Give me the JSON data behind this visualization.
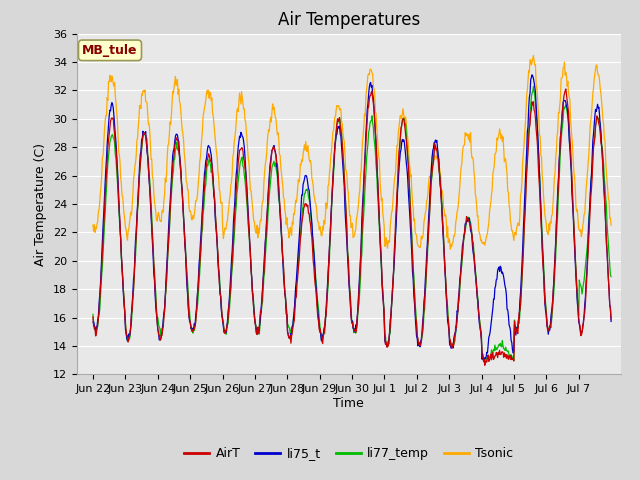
{
  "title": "Air Temperatures",
  "ylabel": "Air Temperature (C)",
  "xlabel": "Time",
  "ylim": [
    12,
    36
  ],
  "yticks": [
    12,
    14,
    16,
    18,
    20,
    22,
    24,
    26,
    28,
    30,
    32,
    34,
    36
  ],
  "colors": {
    "AirT": "#cc0000",
    "li75_t": "#0000cc",
    "li77_temp": "#00bb00",
    "Tsonic": "#ffaa00"
  },
  "legend_labels": [
    "AirT",
    "li75_t",
    "li77_temp",
    "Tsonic"
  ],
  "annotation_text": "MB_tule",
  "annotation_color": "#880000",
  "annotation_bg": "#ffffcc",
  "background_color": "#e8e8e8",
  "grid_color": "#ffffff",
  "title_fontsize": 12,
  "label_fontsize": 9,
  "tick_fontsize": 8,
  "xtick_labels": [
    "Jun 22",
    "Jun 23",
    "Jun 24",
    "Jun 25",
    "Jun 26",
    "Jun 27",
    "Jun 28",
    "Jun 29",
    "Jun 30",
    "Jul 1",
    "Jul 2",
    "Jul 3",
    "Jul 4",
    "Jul 5",
    "Jul 6",
    "Jul 7"
  ]
}
